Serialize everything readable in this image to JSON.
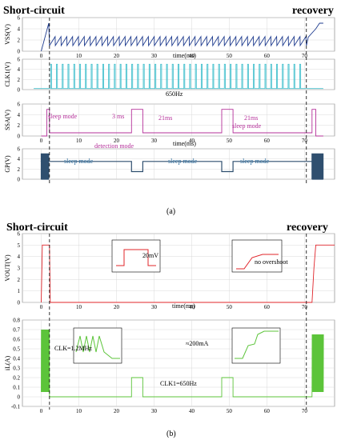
{
  "panel_a": {
    "caption": "(a)",
    "title_left": "Short-circuit",
    "title_right": "recovery",
    "x_label": "time(ms)",
    "x_ticks": [
      "0",
      "10",
      "20",
      "30",
      "40",
      "50",
      "60",
      "70"
    ],
    "clk_label": "650Hz",
    "sleep_mode": "sleep mode",
    "detect_ms": "3 ms",
    "detection_mode": "detection mode",
    "interval": "21ms",
    "colors": {
      "vss": "#1f3c8f",
      "clk": "#48c2cf",
      "ssa": "#b5309a",
      "gp": "#2f4f6f"
    }
  },
  "panel_b": {
    "caption": "(b)",
    "title_left": "Short-circuit",
    "title_right": "recovery",
    "inset_20mv": "20mV",
    "no_overshoot": "no overshoot",
    "clk_12": "CLK=1.2MHz",
    "approx_200": "≈200mA",
    "clk1_650": "CLK1=650Hz",
    "colors": {
      "vout": "#e0242a",
      "il": "#5cc43a"
    }
  },
  "chart_data": [
    {
      "type": "line",
      "name": "VSS",
      "ylabel": "VSS(V)",
      "yticks": [
        "0",
        "2",
        "4",
        "6"
      ],
      "ylim": [
        0,
        6
      ],
      "xlim": [
        -5,
        78
      ],
      "x": [
        0,
        2,
        2.2,
        70.5,
        71,
        73,
        74,
        75
      ],
      "y": [
        0,
        5,
        1,
        1,
        2.5,
        4,
        5,
        5
      ],
      "notes": "sawtooth between ~1V and ~2.6V from 2ms to 70ms"
    },
    {
      "type": "line",
      "name": "CLK1",
      "ylabel": "CLK1(V)",
      "yticks": [
        "0",
        "2",
        "4",
        "6"
      ],
      "ylim": [
        0,
        6
      ],
      "xlim": [
        -5,
        78
      ],
      "pulse_low": 0.2,
      "pulse_high": 5,
      "pulse_start": 2.5,
      "pulse_end": 70,
      "frequency_label": "650Hz"
    },
    {
      "type": "line",
      "name": "SSA",
      "ylabel": "SSA(V)",
      "yticks": [
        "0",
        "2",
        "4",
        "6"
      ],
      "ylim": [
        0,
        6
      ],
      "xlim": [
        -5,
        78
      ],
      "x": [
        0,
        1.5,
        1.5,
        2.2,
        2.2,
        24,
        24,
        27,
        27,
        48,
        48,
        51,
        51,
        72,
        72,
        73,
        73,
        75
      ],
      "y": [
        0,
        0,
        5,
        5,
        0.6,
        0.6,
        5,
        5,
        0.6,
        0.6,
        5,
        5,
        0.6,
        0.6,
        5,
        5,
        0,
        0
      ]
    },
    {
      "type": "line",
      "name": "GP",
      "ylabel": "GP(V)",
      "yticks": [
        "0",
        "2",
        "4",
        "6"
      ],
      "ylim": [
        0,
        6
      ],
      "xlim": [
        -5,
        78
      ],
      "x": [
        0,
        2,
        2,
        24,
        24,
        27,
        27,
        48,
        48,
        51,
        51,
        72
      ],
      "y": [
        3.5,
        3.5,
        3.5,
        3.5,
        1.5,
        1.5,
        3.5,
        3.5,
        1.5,
        1.5,
        3.5,
        3.5
      ],
      "notes": "dense switching 0-5V during 0-2ms and 72-75ms"
    },
    {
      "type": "line",
      "name": "VOUT",
      "ylabel": "VOUT(V)",
      "xlabel": "time(ms)",
      "yticks": [
        "0",
        "1",
        "2",
        "3",
        "4",
        "5",
        "6"
      ],
      "xticks": [
        "0",
        "10",
        "20",
        "30",
        "40",
        "50",
        "60",
        "70"
      ],
      "ylim": [
        0,
        6
      ],
      "xlim": [
        -5,
        78
      ],
      "x": [
        0,
        0.3,
        2.2,
        2.4,
        72,
        72.5,
        73,
        78
      ],
      "y": [
        0,
        5,
        5,
        0,
        0,
        3,
        5,
        5
      ]
    },
    {
      "type": "line",
      "name": "iL",
      "ylabel": "iL(A)",
      "yticks": [
        "-0.1",
        "0",
        "0.1",
        "0.2",
        "0.3",
        "0.4",
        "0.5",
        "0.6",
        "0.7",
        "0.8"
      ],
      "xticks": [
        "0",
        "10",
        "20",
        "30",
        "40",
        "50",
        "60",
        "70"
      ],
      "ylim": [
        -0.1,
        0.8
      ],
      "xlim": [
        -5,
        78
      ],
      "x": [
        2.2,
        2.4,
        24,
        24,
        27,
        27,
        48,
        48,
        51,
        51,
        72
      ],
      "y": [
        0,
        0,
        0,
        0.2,
        0.2,
        0,
        0,
        0.2,
        0.2,
        0,
        0
      ],
      "notes": "bursts up to ~0.7A during 0-2ms and 72-75ms"
    }
  ]
}
